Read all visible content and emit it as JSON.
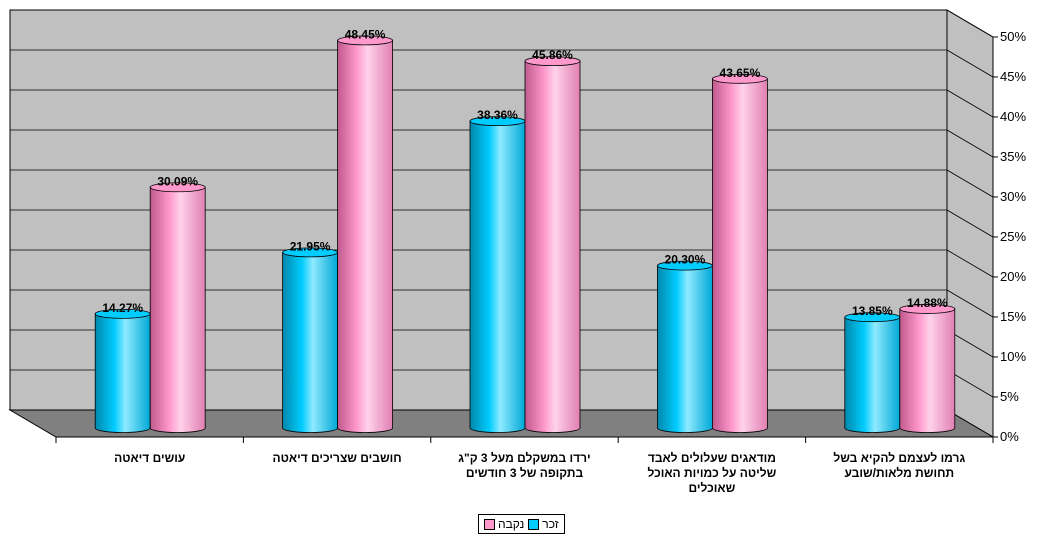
{
  "chart_data": {
    "type": "bar",
    "categories": [
      "עושים דיאטה",
      "חושבים שצריכים דיאטה",
      "ירדו במשקלם מעל 3 ק\"ג\nבתקופה של 3 חודשים",
      "מודאגים שעלולים לאבד\nשליטה על כמויות האוכל\nשאוכלים",
      "גרמו לעצמם להקיא בשל\nתחושת מלאות/שובע"
    ],
    "series": [
      {
        "name": "זכר",
        "color": "#00ccff",
        "values": [
          14.27,
          21.95,
          38.36,
          20.3,
          13.85
        ],
        "labels": [
          "14.27%",
          "21.95%",
          "38.36%",
          "20.30%",
          "13.85%"
        ]
      },
      {
        "name": "נקבה",
        "color": "#ff99cc",
        "values": [
          30.09,
          48.45,
          45.86,
          43.65,
          14.88
        ],
        "labels": [
          "30.09%",
          "48.45%",
          "45.86%",
          "43.65%",
          "14.88%"
        ]
      }
    ],
    "y_ticks": [
      "0%",
      "5%",
      "10%",
      "15%",
      "20%",
      "25%",
      "30%",
      "35%",
      "40%",
      "45%",
      "50%"
    ],
    "ylim": [
      0,
      50
    ],
    "grid": true,
    "legend_position": "bottom",
    "colors": {
      "wall": "#c0c0c0",
      "floor": "#808080"
    }
  }
}
